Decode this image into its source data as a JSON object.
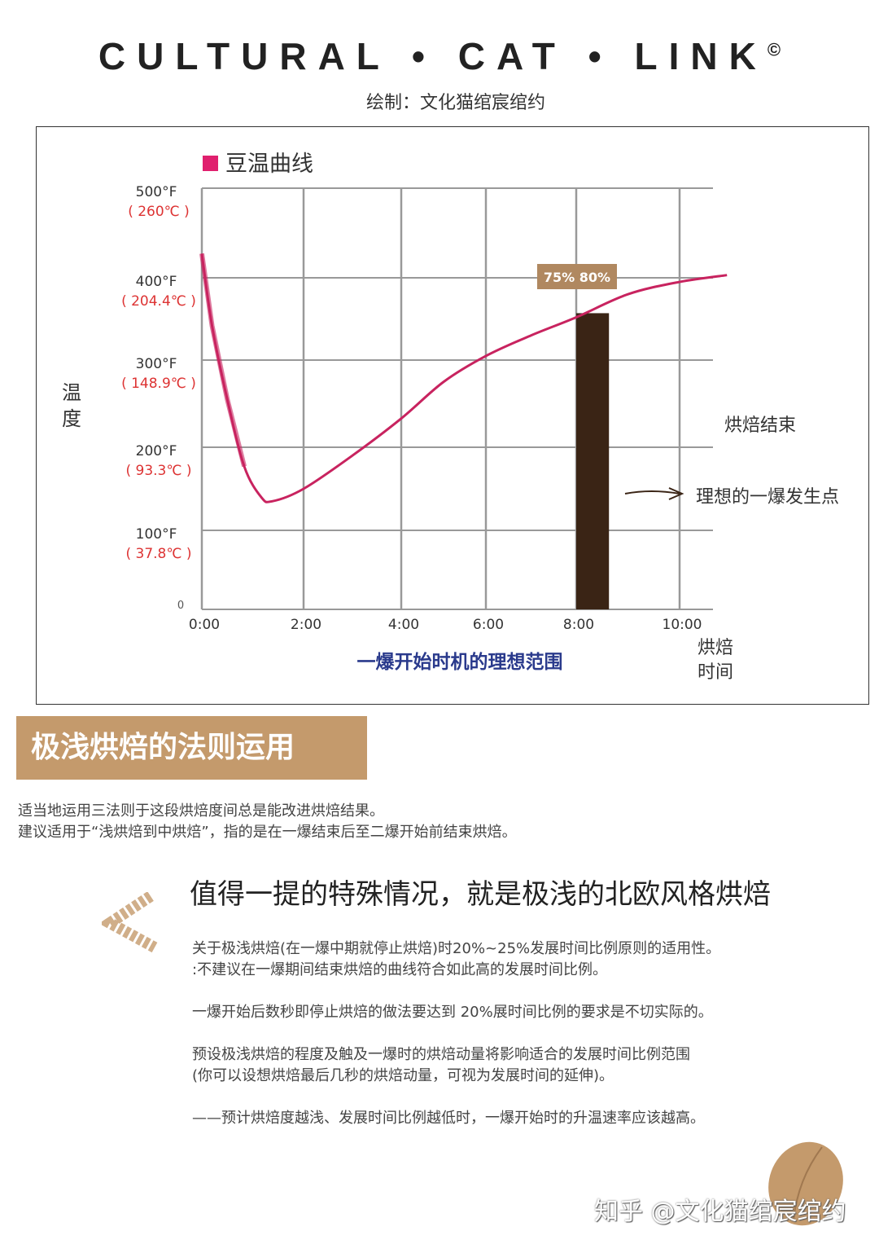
{
  "header": {
    "brand": "CULTURAL • CAT • LINK",
    "copyright": "©",
    "credit": "绘制：文化猫绾宸绾约"
  },
  "chart_data": {
    "type": "line",
    "legend": {
      "label": "豆温曲线",
      "color": "#e0206e",
      "placement": "top-left"
    },
    "ylabel": "温度",
    "xlabel": "烘焙时间",
    "y_ticks": [
      {
        "v": 0,
        "f": "0",
        "c": ""
      },
      {
        "v": 100,
        "f": "100°F",
        "c": "( 37.8℃ )"
      },
      {
        "v": 200,
        "f": "200°F",
        "c": "( 93.3℃ )"
      },
      {
        "v": 300,
        "f": "300°F",
        "c": "( 148.9℃ )"
      },
      {
        "v": 400,
        "f": "400°F",
        "c": "( 204.4℃ )"
      },
      {
        "v": 500,
        "f": "500°F",
        "c": "( 260℃ )"
      }
    ],
    "x_ticks": [
      "0:00",
      "2:00",
      "4:00",
      "6:00",
      "8:00",
      "10:00"
    ],
    "ylim": [
      0,
      500
    ],
    "grid": true,
    "series": [
      {
        "name": "豆温曲线",
        "color": "#c8235f",
        "points": [
          [
            "0:00",
            427
          ],
          [
            "0:12",
            342
          ],
          [
            "0:30",
            255
          ],
          [
            "0:50",
            177
          ],
          [
            "1:10",
            140
          ],
          [
            "1:23",
            135
          ],
          [
            "2:00",
            150
          ],
          [
            "3:00",
            190
          ],
          [
            "4:00",
            233
          ],
          [
            "5:00",
            275
          ],
          [
            "6:00",
            305
          ],
          [
            "7:00",
            330
          ],
          [
            "8:00",
            352
          ],
          [
            "9:00",
            380
          ],
          [
            "10:00",
            395
          ],
          [
            "10:55",
            403
          ]
        ]
      }
    ],
    "bar": {
      "start": "8:00",
      "end": "8:38",
      "value": 357,
      "color": "#3a2415",
      "label": "75% 80%",
      "label_color": "#b08860"
    },
    "annotations": {
      "end": "烘焙结束",
      "ideal_point": "理想的一爆发生点",
      "range": "一爆开始时机的理想范围"
    }
  },
  "section": {
    "title": "极浅烘焙的法则运用",
    "lines": [
      "适当地运用三法则于这段烘焙度间总是能改进烘焙结果。",
      "建议适用于“浅烘焙到中烘焙”，指的是在一爆结束后至二爆开始前结束烘焙。"
    ]
  },
  "special": {
    "title": "值得一提的特殊情况，就是极浅的北欧风格烘焙",
    "paragraphs": [
      [
        "关于极浅烘焙(在一爆中期就停止烘焙)时20%~25%发展时间比例原则的适用性。",
        ":不建议在一爆期间结束烘焙的曲线符合如此高的发展时间比例。"
      ],
      [
        "一爆开始后数秒即停止烘焙的做法要达到 20%展时间比例的要求是不切实际的。"
      ],
      [
        "预设极浅烘焙的程度及触及一爆时的烘焙动量将影响适合的发展时间比例范围",
        "(你可以设想烘焙最后几秒的烘焙动量，可视为发展时间的延伸)。"
      ],
      [
        "——预计烘焙度越浅、发展时间比例越低时，一爆开始时的升温速率应该越高。"
      ]
    ]
  },
  "watermark": "知乎 @文化猫绾宸绾约"
}
